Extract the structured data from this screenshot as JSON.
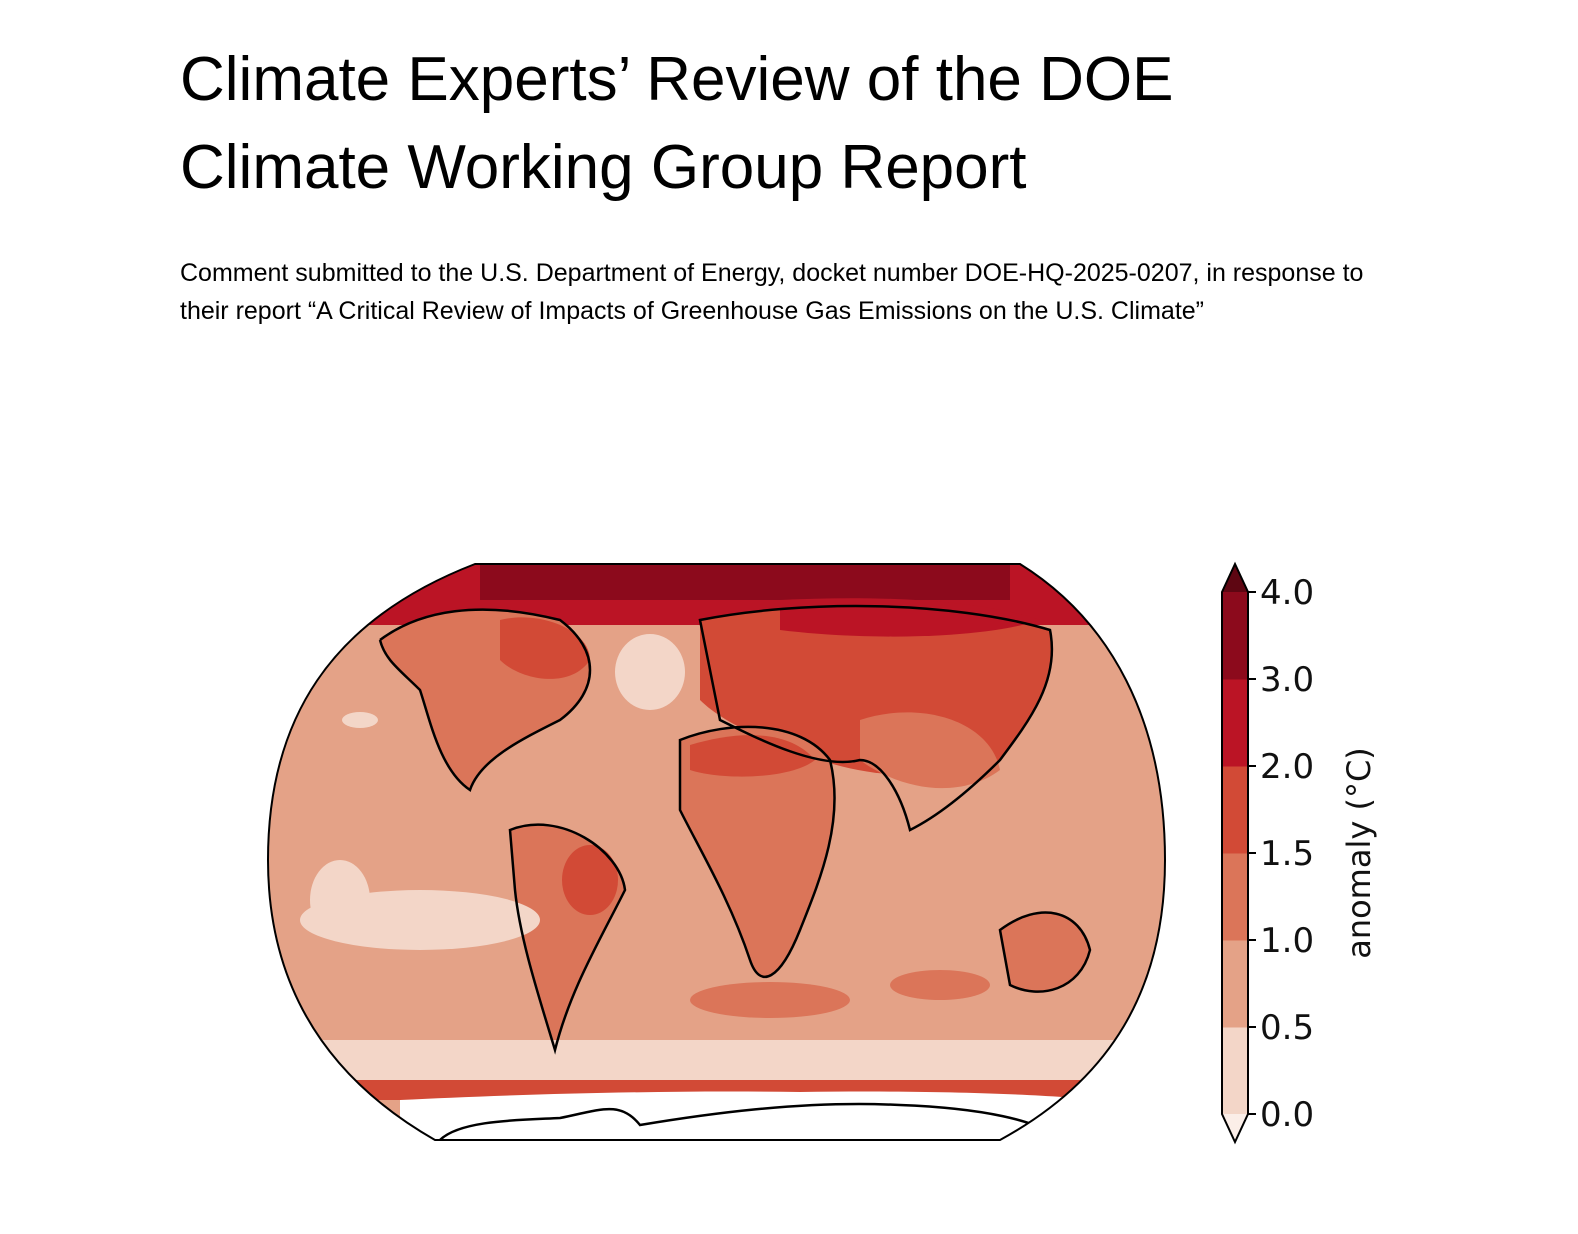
{
  "header": {
    "title": "Climate Experts’ Review of the DOE Climate Working Group Report",
    "subtitle": "Comment submitted to the U.S. Department of Energy, docket number DOE-HQ-2025-0207, in response to their report “A Critical Review of Impacts of Greenhouse Gas Emissions on the U.S. Climate”"
  },
  "figure": {
    "type": "world temperature anomaly map",
    "colorbar": {
      "label": "anomaly (°C)",
      "ticks": [
        "0.0",
        "0.5",
        "1.0",
        "1.5",
        "2.0",
        "3.0",
        "4.0"
      ],
      "bins": [
        {
          "from": 0.0,
          "to": 0.5,
          "color": "#f3d6c8"
        },
        {
          "from": 0.5,
          "to": 1.0,
          "color": "#e4a287"
        },
        {
          "from": 1.0,
          "to": 1.5,
          "color": "#db7559"
        },
        {
          "from": 1.5,
          "to": 2.0,
          "color": "#d24a36"
        },
        {
          "from": 2.0,
          "to": 3.0,
          "color": "#bb1425"
        },
        {
          "from": 3.0,
          "to": 4.0,
          "color": "#8c0a1c"
        }
      ],
      "over_color": "#5e0612",
      "under_color": "#fbeee8"
    }
  }
}
